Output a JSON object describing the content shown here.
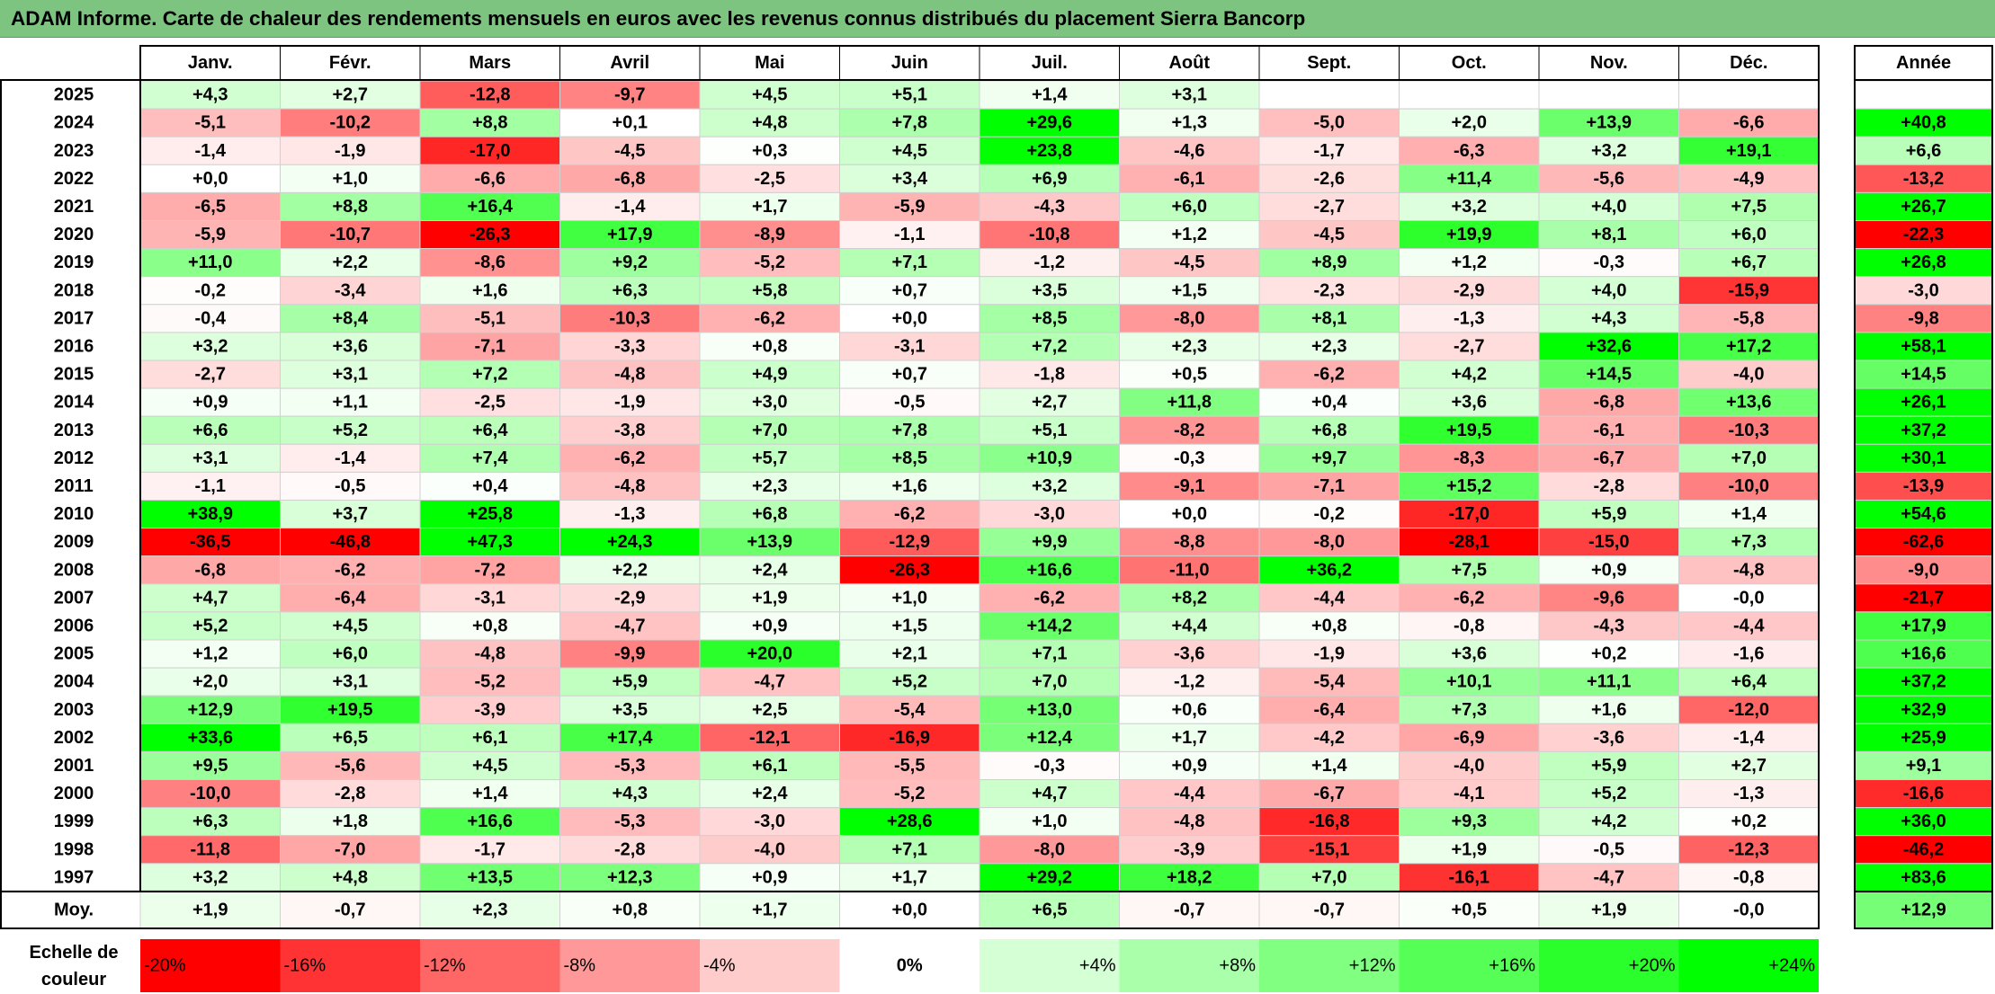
{
  "title": "ADAM Informe. Carte de chaleur des rendements mensuels en euros avec les revenus connus distribués du placement Sierra Bancorp",
  "colors": {
    "title_bg": "#7cc47f",
    "neg_max": "#ff0000",
    "pos_max": "#00ff00",
    "neutral": "#ffffff"
  },
  "chart_data": {
    "type": "heatmap",
    "title": "ADAM Informe. Carte de chaleur des rendements mensuels en euros avec les revenus connus distribués du placement Sierra Bancorp",
    "months": [
      "Janv.",
      "Févr.",
      "Mars",
      "Avril",
      "Mai",
      "Juin",
      "Juil.",
      "Août",
      "Sept.",
      "Oct.",
      "Nov.",
      "Déc."
    ],
    "year_header": "Année",
    "rows": [
      {
        "year": "2025",
        "m": [
          "+4,3",
          "+2,7",
          "-12,8",
          "-9,7",
          "+4,5",
          "+5,1",
          "+1,4",
          "+3,1",
          "",
          "",
          "",
          ""
        ],
        "annual": ""
      },
      {
        "year": "2024",
        "m": [
          "-5,1",
          "-10,2",
          "+8,8",
          "+0,1",
          "+4,8",
          "+7,8",
          "+29,6",
          "+1,3",
          "-5,0",
          "+2,0",
          "+13,9",
          "-6,6"
        ],
        "annual": "+40,8"
      },
      {
        "year": "2023",
        "m": [
          "-1,4",
          "-1,9",
          "-17,0",
          "-4,5",
          "+0,3",
          "+4,5",
          "+23,8",
          "-4,6",
          "-1,7",
          "-6,3",
          "+3,2",
          "+19,1"
        ],
        "annual": "+6,6"
      },
      {
        "year": "2022",
        "m": [
          "+0,0",
          "+1,0",
          "-6,6",
          "-6,8",
          "-2,5",
          "+3,4",
          "+6,9",
          "-6,1",
          "-2,6",
          "+11,4",
          "-5,6",
          "-4,9"
        ],
        "annual": "-13,2"
      },
      {
        "year": "2021",
        "m": [
          "-6,5",
          "+8,8",
          "+16,4",
          "-1,4",
          "+1,7",
          "-5,9",
          "-4,3",
          "+6,0",
          "-2,7",
          "+3,2",
          "+4,0",
          "+7,5"
        ],
        "annual": "+26,7"
      },
      {
        "year": "2020",
        "m": [
          "-5,9",
          "-10,7",
          "-26,3",
          "+17,9",
          "-8,9",
          "-1,1",
          "-10,8",
          "+1,2",
          "-4,5",
          "+19,9",
          "+8,1",
          "+6,0"
        ],
        "annual": "-22,3"
      },
      {
        "year": "2019",
        "m": [
          "+11,0",
          "+2,2",
          "-8,6",
          "+9,2",
          "-5,2",
          "+7,1",
          "-1,2",
          "-4,5",
          "+8,9",
          "+1,2",
          "-0,3",
          "+6,7"
        ],
        "annual": "+26,8"
      },
      {
        "year": "2018",
        "m": [
          "-0,2",
          "-3,4",
          "+1,6",
          "+6,3",
          "+5,8",
          "+0,7",
          "+3,5",
          "+1,5",
          "-2,3",
          "-2,9",
          "+4,0",
          "-15,9"
        ],
        "annual": "-3,0"
      },
      {
        "year": "2017",
        "m": [
          "-0,4",
          "+8,4",
          "-5,1",
          "-10,3",
          "-6,2",
          "+0,0",
          "+8,5",
          "-8,0",
          "+8,1",
          "-1,3",
          "+4,3",
          "-5,8"
        ],
        "annual": "-9,8"
      },
      {
        "year": "2016",
        "m": [
          "+3,2",
          "+3,6",
          "-7,1",
          "-3,3",
          "+0,8",
          "-3,1",
          "+7,2",
          "+2,3",
          "+2,3",
          "-2,7",
          "+32,6",
          "+17,2"
        ],
        "annual": "+58,1"
      },
      {
        "year": "2015",
        "m": [
          "-2,7",
          "+3,1",
          "+7,2",
          "-4,8",
          "+4,9",
          "+0,7",
          "-1,8",
          "+0,5",
          "-6,2",
          "+4,2",
          "+14,5",
          "-4,0"
        ],
        "annual": "+14,5"
      },
      {
        "year": "2014",
        "m": [
          "+0,9",
          "+1,1",
          "-2,5",
          "-1,9",
          "+3,0",
          "-0,5",
          "+2,7",
          "+11,8",
          "+0,4",
          "+3,6",
          "-6,8",
          "+13,6"
        ],
        "annual": "+26,1"
      },
      {
        "year": "2013",
        "m": [
          "+6,6",
          "+5,2",
          "+6,4",
          "-3,8",
          "+7,0",
          "+7,8",
          "+5,1",
          "-8,2",
          "+6,8",
          "+19,5",
          "-6,1",
          "-10,3"
        ],
        "annual": "+37,2"
      },
      {
        "year": "2012",
        "m": [
          "+3,1",
          "-1,4",
          "+7,4",
          "-6,2",
          "+5,7",
          "+8,5",
          "+10,9",
          "-0,3",
          "+9,7",
          "-8,3",
          "-6,7",
          "+7,0"
        ],
        "annual": "+30,1"
      },
      {
        "year": "2011",
        "m": [
          "-1,1",
          "-0,5",
          "+0,4",
          "-4,8",
          "+2,3",
          "+1,6",
          "+3,2",
          "-9,1",
          "-7,1",
          "+15,2",
          "-2,8",
          "-10,0"
        ],
        "annual": "-13,9"
      },
      {
        "year": "2010",
        "m": [
          "+38,9",
          "+3,7",
          "+25,8",
          "-1,3",
          "+6,8",
          "-6,2",
          "-3,0",
          "+0,0",
          "-0,2",
          "-17,0",
          "+5,9",
          "+1,4"
        ],
        "annual": "+54,6"
      },
      {
        "year": "2009",
        "m": [
          "-36,5",
          "-46,8",
          "+47,3",
          "+24,3",
          "+13,9",
          "-12,9",
          "+9,9",
          "-8,8",
          "-8,0",
          "-28,1",
          "-15,0",
          "+7,3"
        ],
        "annual": "-62,6"
      },
      {
        "year": "2008",
        "m": [
          "-6,8",
          "-6,2",
          "-7,2",
          "+2,2",
          "+2,4",
          "-26,3",
          "+16,6",
          "-11,0",
          "+36,2",
          "+7,5",
          "+0,9",
          "-4,8"
        ],
        "annual": "-9,0"
      },
      {
        "year": "2007",
        "m": [
          "+4,7",
          "-6,4",
          "-3,1",
          "-2,9",
          "+1,9",
          "+1,0",
          "-6,2",
          "+8,2",
          "-4,4",
          "-6,2",
          "-9,6",
          "-0,0"
        ],
        "annual": "-21,7"
      },
      {
        "year": "2006",
        "m": [
          "+5,2",
          "+4,5",
          "+0,8",
          "-4,7",
          "+0,9",
          "+1,5",
          "+14,2",
          "+4,4",
          "+0,8",
          "-0,8",
          "-4,3",
          "-4,4"
        ],
        "annual": "+17,9"
      },
      {
        "year": "2005",
        "m": [
          "+1,2",
          "+6,0",
          "-4,8",
          "-9,9",
          "+20,0",
          "+2,1",
          "+7,1",
          "-3,6",
          "-1,9",
          "+3,6",
          "+0,2",
          "-1,6"
        ],
        "annual": "+16,6"
      },
      {
        "year": "2004",
        "m": [
          "+2,0",
          "+3,1",
          "-5,2",
          "+5,9",
          "-4,7",
          "+5,2",
          "+7,0",
          "-1,2",
          "-5,4",
          "+10,1",
          "+11,1",
          "+6,4"
        ],
        "annual": "+37,2"
      },
      {
        "year": "2003",
        "m": [
          "+12,9",
          "+19,5",
          "-3,9",
          "+3,5",
          "+2,5",
          "-5,4",
          "+13,0",
          "+0,6",
          "-6,4",
          "+7,3",
          "+1,6",
          "-12,0"
        ],
        "annual": "+32,9"
      },
      {
        "year": "2002",
        "m": [
          "+33,6",
          "+6,5",
          "+6,1",
          "+17,4",
          "-12,1",
          "-16,9",
          "+12,4",
          "+1,7",
          "-4,2",
          "-6,9",
          "-3,6",
          "-1,4"
        ],
        "annual": "+25,9"
      },
      {
        "year": "2001",
        "m": [
          "+9,5",
          "-5,6",
          "+4,5",
          "-5,3",
          "+6,1",
          "-5,5",
          "-0,3",
          "+0,9",
          "+1,4",
          "-4,0",
          "+5,9",
          "+2,7"
        ],
        "annual": "+9,1"
      },
      {
        "year": "2000",
        "m": [
          "-10,0",
          "-2,8",
          "+1,4",
          "+4,3",
          "+2,4",
          "-5,2",
          "+4,7",
          "-4,4",
          "-6,7",
          "-4,1",
          "+5,2",
          "-1,3"
        ],
        "annual": "-16,6"
      },
      {
        "year": "1999",
        "m": [
          "+6,3",
          "+1,8",
          "+16,6",
          "-5,3",
          "-3,0",
          "+28,6",
          "+1,0",
          "-4,8",
          "-16,8",
          "+9,3",
          "+4,2",
          "+0,2"
        ],
        "annual": "+36,0"
      },
      {
        "year": "1998",
        "m": [
          "-11,8",
          "-7,0",
          "-1,7",
          "-2,8",
          "-4,0",
          "+7,1",
          "-8,0",
          "-3,9",
          "-15,1",
          "+1,9",
          "-0,5",
          "-12,3"
        ],
        "annual": "-46,2"
      },
      {
        "year": "1997",
        "m": [
          "+3,2",
          "+4,8",
          "+13,5",
          "+12,3",
          "+0,9",
          "+1,7",
          "+29,2",
          "+18,2",
          "+7,0",
          "-16,1",
          "-4,7",
          "-0,8"
        ],
        "annual": "+83,6"
      }
    ],
    "average": {
      "label": "Moy.",
      "m": [
        "+1,9",
        "-0,7",
        "+2,3",
        "+0,8",
        "+1,7",
        "+0,0",
        "+6,5",
        "-0,7",
        "-0,7",
        "+0,5",
        "+1,9",
        "-0,0"
      ],
      "annual": "+12,9"
    },
    "scale": {
      "label_line1": "Echelle de",
      "label_line2": "couleur",
      "items": [
        "-20%",
        "-16%",
        "-12%",
        "-8%",
        "-4%",
        "0%",
        "+4%",
        "+8%",
        "+12%",
        "+16%",
        "+20%",
        "+24%"
      ],
      "values": [
        -20,
        -16,
        -12,
        -8,
        -4,
        0,
        4,
        8,
        12,
        16,
        20,
        24
      ]
    }
  }
}
